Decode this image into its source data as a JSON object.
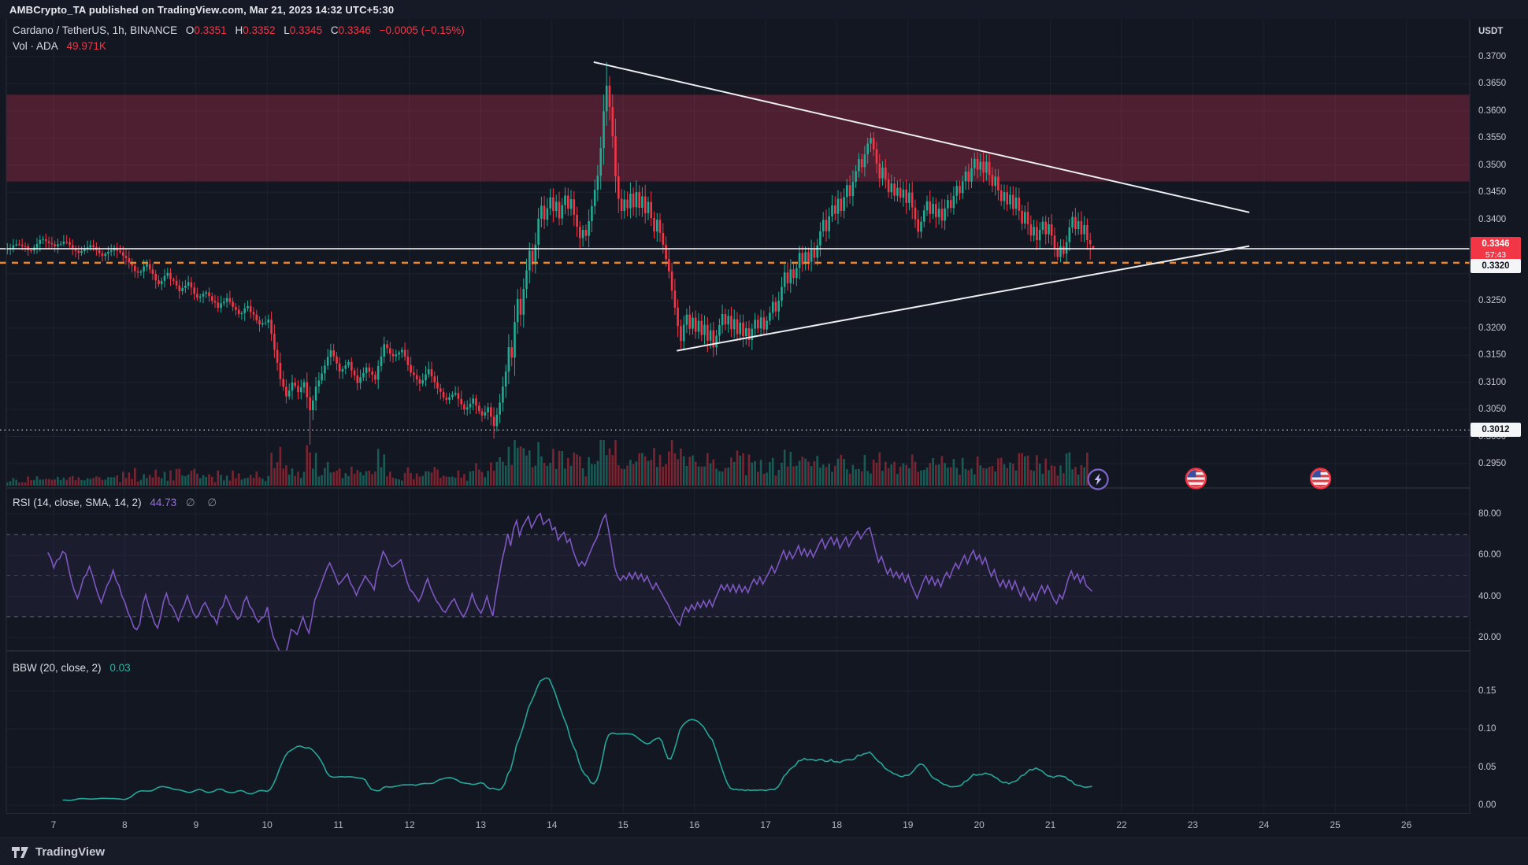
{
  "publish_bar": {
    "text": "AMBCrypto_TA published on TradingView.com, Mar 21, 2023 14:32 UTC+5:30"
  },
  "main_legend": {
    "title": "Cardano / TetherUS, 1h, BINANCE",
    "o_label": "O",
    "o": "0.3351",
    "h_label": "H",
    "h": "0.3352",
    "l_label": "L",
    "l": "0.3345",
    "c_label": "C",
    "c": "0.3346",
    "change": "−0.0005 (−0.15%)",
    "volume_label": "Vol · ADA",
    "volume_value": "49.971K"
  },
  "rsi_panel": {
    "label": "RSI (14, close, SMA, 14, 2)",
    "value": "44.73",
    "hidden_values": "∅ ∅"
  },
  "bbw_panel": {
    "label": "BBW (20, close, 2)",
    "value": "0.03"
  },
  "price_axis": {
    "currency": "USDT",
    "ticks": [
      "0.3700",
      "0.3650",
      "0.3600",
      "0.3550",
      "0.3500",
      "0.3450",
      "0.3400",
      "0.3250",
      "0.3200",
      "0.3150",
      "0.3100",
      "0.3050",
      "0.3000",
      "0.2950"
    ],
    "current_badge": {
      "price": "0.3346",
      "countdown": "57:43"
    },
    "line_badge": "0.3320",
    "dotted_badge": "0.3012",
    "rsi_ticks": [
      "80.00",
      "60.00",
      "40.00",
      "20.00"
    ],
    "bbw_ticks": [
      "0.15",
      "0.10",
      "0.05",
      "0.00"
    ]
  },
  "time_axis": {
    "labels": [
      "7",
      "8",
      "9",
      "10",
      "11",
      "12",
      "13",
      "14",
      "15",
      "16",
      "17",
      "18",
      "19",
      "20",
      "21",
      "22",
      "23",
      "24",
      "25",
      "26"
    ]
  },
  "footer": {
    "brand": "TradingView"
  },
  "colors": {
    "background": "#131722",
    "up": "#22ab94",
    "down": "#f23645",
    "rsi_line": "#7e57c2",
    "bbw_line": "#26a69a",
    "trendline": "#eceef2",
    "orange_line": "#e8862d",
    "resistance_zone": "rgba(244,56,92,0.26)",
    "grid": "#1d2230"
  },
  "chart_data": {
    "type": "bar",
    "subtype": "candlestick-with-indicators",
    "title": "Cardano / TetherUS, 1h, BINANCE",
    "interval": "1h",
    "x_start_label": "Mar 6 08:00",
    "x_end_label": "Mar 21 14:00",
    "ylim": [
      0.295,
      0.37
    ],
    "resistance_zone": {
      "top": 0.363,
      "bottom": 0.347
    },
    "current_price_line": 0.3346,
    "orange_dashed_line": 0.332,
    "white_dotted_line": 0.3012,
    "trendlines": [
      {
        "name": "descending-resistance",
        "t1": 198,
        "p1": 0.369,
        "t2": 419,
        "p2": 0.3413
      },
      {
        "name": "ascending-support",
        "t1": 226,
        "p1": 0.3158,
        "t2": 419,
        "p2": 0.3351
      }
    ],
    "events": [
      {
        "type": "lightning",
        "t": 368
      },
      {
        "type": "us-flag",
        "t": 401
      },
      {
        "type": "us-flag",
        "t": 443
      }
    ],
    "indicators": {
      "rsi": {
        "period": 14,
        "current": 44.73,
        "upper_band": 70,
        "middle": 50,
        "lower_band": 30,
        "ticks": [
          80,
          60,
          40,
          20
        ]
      },
      "bbw": {
        "period": 20,
        "stdev": 2,
        "current": 0.03,
        "ticks": [
          0.15,
          0.1,
          0.05,
          0.0
        ]
      }
    },
    "volume": {
      "current_label": "49.971K",
      "seed": 42
    },
    "last_candle": {
      "o": 0.3351,
      "h": 0.3352,
      "l": 0.3345,
      "c": 0.3346
    },
    "wick_overrides": {
      "102": [
        null,
        0.2985
      ],
      "164": [
        null,
        0.2996
      ],
      "202": [
        0.369,
        null
      ],
      "291": [
        0.356,
        null
      ],
      "354": [
        null,
        0.3324
      ],
      "365": [
        null,
        0.3326
      ]
    },
    "price_anchors": [
      [
        0,
        0.3345
      ],
      [
        4,
        0.3356
      ],
      [
        8,
        0.3342
      ],
      [
        12,
        0.3366
      ],
      [
        16,
        0.335
      ],
      [
        20,
        0.336
      ],
      [
        24,
        0.3337
      ],
      [
        28,
        0.3354
      ],
      [
        32,
        0.3334
      ],
      [
        36,
        0.3348
      ],
      [
        40,
        0.3328
      ],
      [
        44,
        0.33
      ],
      [
        47,
        0.3318
      ],
      [
        51,
        0.3281
      ],
      [
        54,
        0.33
      ],
      [
        58,
        0.3269
      ],
      [
        61,
        0.3282
      ],
      [
        64,
        0.3254
      ],
      [
        67,
        0.3266
      ],
      [
        71,
        0.3238
      ],
      [
        74,
        0.3255
      ],
      [
        78,
        0.3224
      ],
      [
        81,
        0.324
      ],
      [
        85,
        0.3205
      ],
      [
        88,
        0.3215
      ],
      [
        90,
        0.316
      ],
      [
        92,
        0.3108
      ],
      [
        94,
        0.3074
      ],
      [
        96,
        0.31
      ],
      [
        98,
        0.3082
      ],
      [
        100,
        0.3098
      ],
      [
        102,
        0.3046
      ],
      [
        104,
        0.309
      ],
      [
        107,
        0.313
      ],
      [
        109,
        0.316
      ],
      [
        112,
        0.3118
      ],
      [
        115,
        0.3136
      ],
      [
        118,
        0.31
      ],
      [
        121,
        0.3126
      ],
      [
        124,
        0.3106
      ],
      [
        127,
        0.317
      ],
      [
        130,
        0.3146
      ],
      [
        133,
        0.3162
      ],
      [
        136,
        0.3118
      ],
      [
        139,
        0.3098
      ],
      [
        142,
        0.3122
      ],
      [
        145,
        0.309
      ],
      [
        148,
        0.3066
      ],
      [
        151,
        0.3082
      ],
      [
        154,
        0.305
      ],
      [
        157,
        0.3068
      ],
      [
        160,
        0.3038
      ],
      [
        162,
        0.3056
      ],
      [
        164,
        0.302
      ],
      [
        166,
        0.3062
      ],
      [
        168,
        0.312
      ],
      [
        169,
        0.3164
      ],
      [
        170,
        0.3146
      ],
      [
        171,
        0.321
      ],
      [
        172,
        0.3252
      ],
      [
        173,
        0.3226
      ],
      [
        174,
        0.327
      ],
      [
        175,
        0.3306
      ],
      [
        176,
        0.334
      ],
      [
        177,
        0.3318
      ],
      [
        178,
        0.3356
      ],
      [
        179,
        0.34
      ],
      [
        180,
        0.3426
      ],
      [
        181,
        0.3398
      ],
      [
        182,
        0.342
      ],
      [
        183,
        0.3442
      ],
      [
        184,
        0.3414
      ],
      [
        185,
        0.3432
      ],
      [
        186,
        0.3404
      ],
      [
        187,
        0.3428
      ],
      [
        188,
        0.3444
      ],
      [
        189,
        0.3418
      ],
      [
        190,
        0.3436
      ],
      [
        191,
        0.3408
      ],
      [
        192,
        0.3386
      ],
      [
        193,
        0.3364
      ],
      [
        194,
        0.3382
      ],
      [
        195,
        0.3368
      ],
      [
        196,
        0.3398
      ],
      [
        197,
        0.3426
      ],
      [
        198,
        0.3452
      ],
      [
        199,
        0.3482
      ],
      [
        200,
        0.353
      ],
      [
        201,
        0.36
      ],
      [
        202,
        0.3648
      ],
      [
        203,
        0.3608
      ],
      [
        204,
        0.3552
      ],
      [
        205,
        0.3478
      ],
      [
        206,
        0.3438
      ],
      [
        207,
        0.3414
      ],
      [
        208,
        0.3438
      ],
      [
        209,
        0.342
      ],
      [
        210,
        0.3446
      ],
      [
        211,
        0.3424
      ],
      [
        212,
        0.3448
      ],
      [
        213,
        0.342
      ],
      [
        214,
        0.344
      ],
      [
        215,
        0.341
      ],
      [
        216,
        0.3432
      ],
      [
        217,
        0.3404
      ],
      [
        218,
        0.338
      ],
      [
        219,
        0.34
      ],
      [
        220,
        0.3376
      ],
      [
        221,
        0.3352
      ],
      [
        222,
        0.3328
      ],
      [
        223,
        0.3304
      ],
      [
        224,
        0.3268
      ],
      [
        225,
        0.3238
      ],
      [
        226,
        0.3204
      ],
      [
        227,
        0.3178
      ],
      [
        228,
        0.3204
      ],
      [
        229,
        0.3226
      ],
      [
        230,
        0.3196
      ],
      [
        231,
        0.3218
      ],
      [
        232,
        0.3194
      ],
      [
        233,
        0.3214
      ],
      [
        234,
        0.3186
      ],
      [
        235,
        0.3206
      ],
      [
        236,
        0.3176
      ],
      [
        237,
        0.3194
      ],
      [
        238,
        0.3164
      ],
      [
        239,
        0.3186
      ],
      [
        240,
        0.3206
      ],
      [
        241,
        0.3226
      ],
      [
        242,
        0.3206
      ],
      [
        243,
        0.3222
      ],
      [
        244,
        0.3196
      ],
      [
        245,
        0.3214
      ],
      [
        246,
        0.319
      ],
      [
        247,
        0.321
      ],
      [
        248,
        0.3186
      ],
      [
        249,
        0.3202
      ],
      [
        250,
        0.318
      ],
      [
        251,
        0.3198
      ],
      [
        252,
        0.3216
      ],
      [
        253,
        0.32
      ],
      [
        254,
        0.3218
      ],
      [
        255,
        0.3196
      ],
      [
        256,
        0.3212
      ],
      [
        257,
        0.3228
      ],
      [
        258,
        0.3248
      ],
      [
        259,
        0.323
      ],
      [
        260,
        0.3252
      ],
      [
        261,
        0.3276
      ],
      [
        262,
        0.33
      ],
      [
        263,
        0.3282
      ],
      [
        264,
        0.331
      ],
      [
        265,
        0.329
      ],
      [
        266,
        0.3312
      ],
      [
        267,
        0.3336
      ],
      [
        268,
        0.3318
      ],
      [
        269,
        0.334
      ],
      [
        270,
        0.3322
      ],
      [
        271,
        0.3346
      ],
      [
        272,
        0.3328
      ],
      [
        273,
        0.3352
      ],
      [
        274,
        0.3376
      ],
      [
        275,
        0.3398
      ],
      [
        276,
        0.338
      ],
      [
        277,
        0.3406
      ],
      [
        278,
        0.3428
      ],
      [
        279,
        0.3412
      ],
      [
        280,
        0.3436
      ],
      [
        281,
        0.3418
      ],
      [
        282,
        0.344
      ],
      [
        283,
        0.3462
      ],
      [
        284,
        0.3444
      ],
      [
        285,
        0.3468
      ],
      [
        286,
        0.349
      ],
      [
        287,
        0.3512
      ],
      [
        288,
        0.3494
      ],
      [
        289,
        0.3518
      ],
      [
        290,
        0.354
      ],
      [
        291,
        0.3552
      ],
      [
        292,
        0.3528
      ],
      [
        293,
        0.3504
      ],
      [
        294,
        0.3478
      ],
      [
        295,
        0.3498
      ],
      [
        296,
        0.3472
      ],
      [
        297,
        0.3448
      ],
      [
        298,
        0.3464
      ],
      [
        299,
        0.3442
      ],
      [
        300,
        0.346
      ],
      [
        301,
        0.3438
      ],
      [
        302,
        0.3456
      ],
      [
        303,
        0.3432
      ],
      [
        304,
        0.3448
      ],
      [
        305,
        0.3424
      ],
      [
        306,
        0.34
      ],
      [
        307,
        0.3378
      ],
      [
        308,
        0.3396
      ],
      [
        309,
        0.3416
      ],
      [
        310,
        0.3432
      ],
      [
        311,
        0.341
      ],
      [
        312,
        0.3428
      ],
      [
        313,
        0.3406
      ],
      [
        314,
        0.3422
      ],
      [
        315,
        0.34
      ],
      [
        316,
        0.3418
      ],
      [
        317,
        0.3438
      ],
      [
        318,
        0.342
      ],
      [
        319,
        0.3442
      ],
      [
        320,
        0.3464
      ],
      [
        321,
        0.3448
      ],
      [
        322,
        0.347
      ],
      [
        323,
        0.349
      ],
      [
        324,
        0.3472
      ],
      [
        325,
        0.3494
      ],
      [
        326,
        0.3512
      ],
      [
        327,
        0.3492
      ],
      [
        328,
        0.3506
      ],
      [
        329,
        0.3488
      ],
      [
        330,
        0.3504
      ],
      [
        331,
        0.3482
      ],
      [
        332,
        0.346
      ],
      [
        333,
        0.3478
      ],
      [
        334,
        0.3454
      ],
      [
        335,
        0.3432
      ],
      [
        336,
        0.345
      ],
      [
        337,
        0.3428
      ],
      [
        338,
        0.3446
      ],
      [
        339,
        0.342
      ],
      [
        340,
        0.3438
      ],
      [
        341,
        0.3414
      ],
      [
        342,
        0.3394
      ],
      [
        343,
        0.3412
      ],
      [
        344,
        0.339
      ],
      [
        345,
        0.3368
      ],
      [
        346,
        0.3386
      ],
      [
        347,
        0.3362
      ],
      [
        348,
        0.338
      ],
      [
        349,
        0.3398
      ],
      [
        350,
        0.3374
      ],
      [
        351,
        0.339
      ],
      [
        352,
        0.3368
      ],
      [
        353,
        0.3348
      ],
      [
        354,
        0.333
      ],
      [
        355,
        0.3352
      ],
      [
        356,
        0.3338
      ],
      [
        357,
        0.336
      ],
      [
        358,
        0.3386
      ],
      [
        359,
        0.3406
      ],
      [
        360,
        0.3382
      ],
      [
        361,
        0.3398
      ],
      [
        362,
        0.3374
      ],
      [
        363,
        0.339
      ],
      [
        364,
        0.336
      ],
      [
        365,
        0.3352
      ],
      [
        366,
        0.3346
      ]
    ]
  }
}
